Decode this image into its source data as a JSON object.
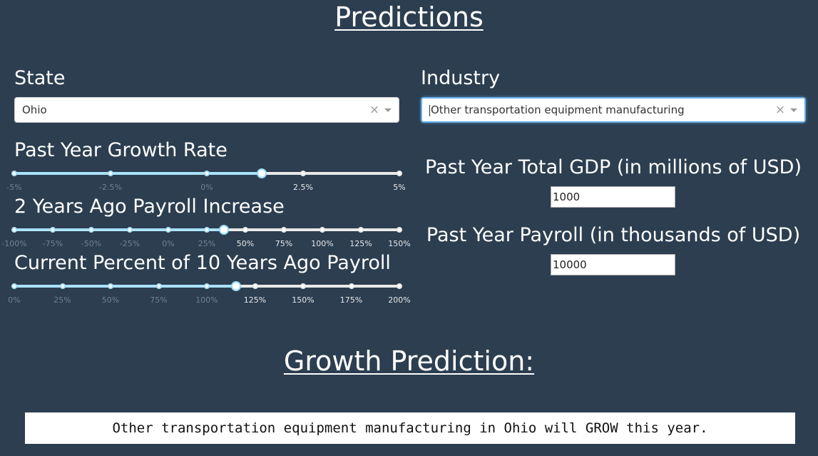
{
  "page_title": "Predictions",
  "state": {
    "label": "State",
    "selected": "Ohio",
    "clear_icon": "clear-x-icon",
    "dropdown_icon": "caret-down-icon"
  },
  "industry": {
    "label": "Industry",
    "selected": "Other transportation equipment manufacturing",
    "clear_icon": "clear-x-icon",
    "dropdown_icon": "caret-down-icon"
  },
  "sliders": [
    {
      "label": "Past Year Growth Rate",
      "marks": [
        "-5%",
        "-2.5%",
        "0%",
        "2.5%",
        "5%"
      ],
      "value_fraction": 0.643,
      "accent": "#abe2fb"
    },
    {
      "label": "2 Years Ago Payroll Increase",
      "marks": [
        "-100%",
        "-75%",
        "-50%",
        "-25%",
        "0%",
        "25%",
        "50%",
        "75%",
        "100%",
        "125%",
        "150%"
      ],
      "value_fraction": 0.545,
      "accent": "#abe2fb"
    },
    {
      "label": "Current Percent of 10 Years Ago Payroll",
      "marks": [
        "0%",
        "25%",
        "50%",
        "75%",
        "100%",
        "125%",
        "150%",
        "175%",
        "200%"
      ],
      "value_fraction": 0.575,
      "accent": "#abe2fb"
    }
  ],
  "gdp": {
    "label": "Past Year Total GDP (in millions of USD)",
    "value": "1000"
  },
  "payroll": {
    "label": "Past Year Payroll (in thousands of USD)",
    "value": "10000"
  },
  "prediction": {
    "title": "Growth Prediction:",
    "result": "Other transportation equipment manufacturing in Ohio will GROW this year."
  },
  "colors": {
    "background": "#2c3e50",
    "slider_track": "#abe2fb",
    "slider_rail": "#e9e9e9"
  }
}
